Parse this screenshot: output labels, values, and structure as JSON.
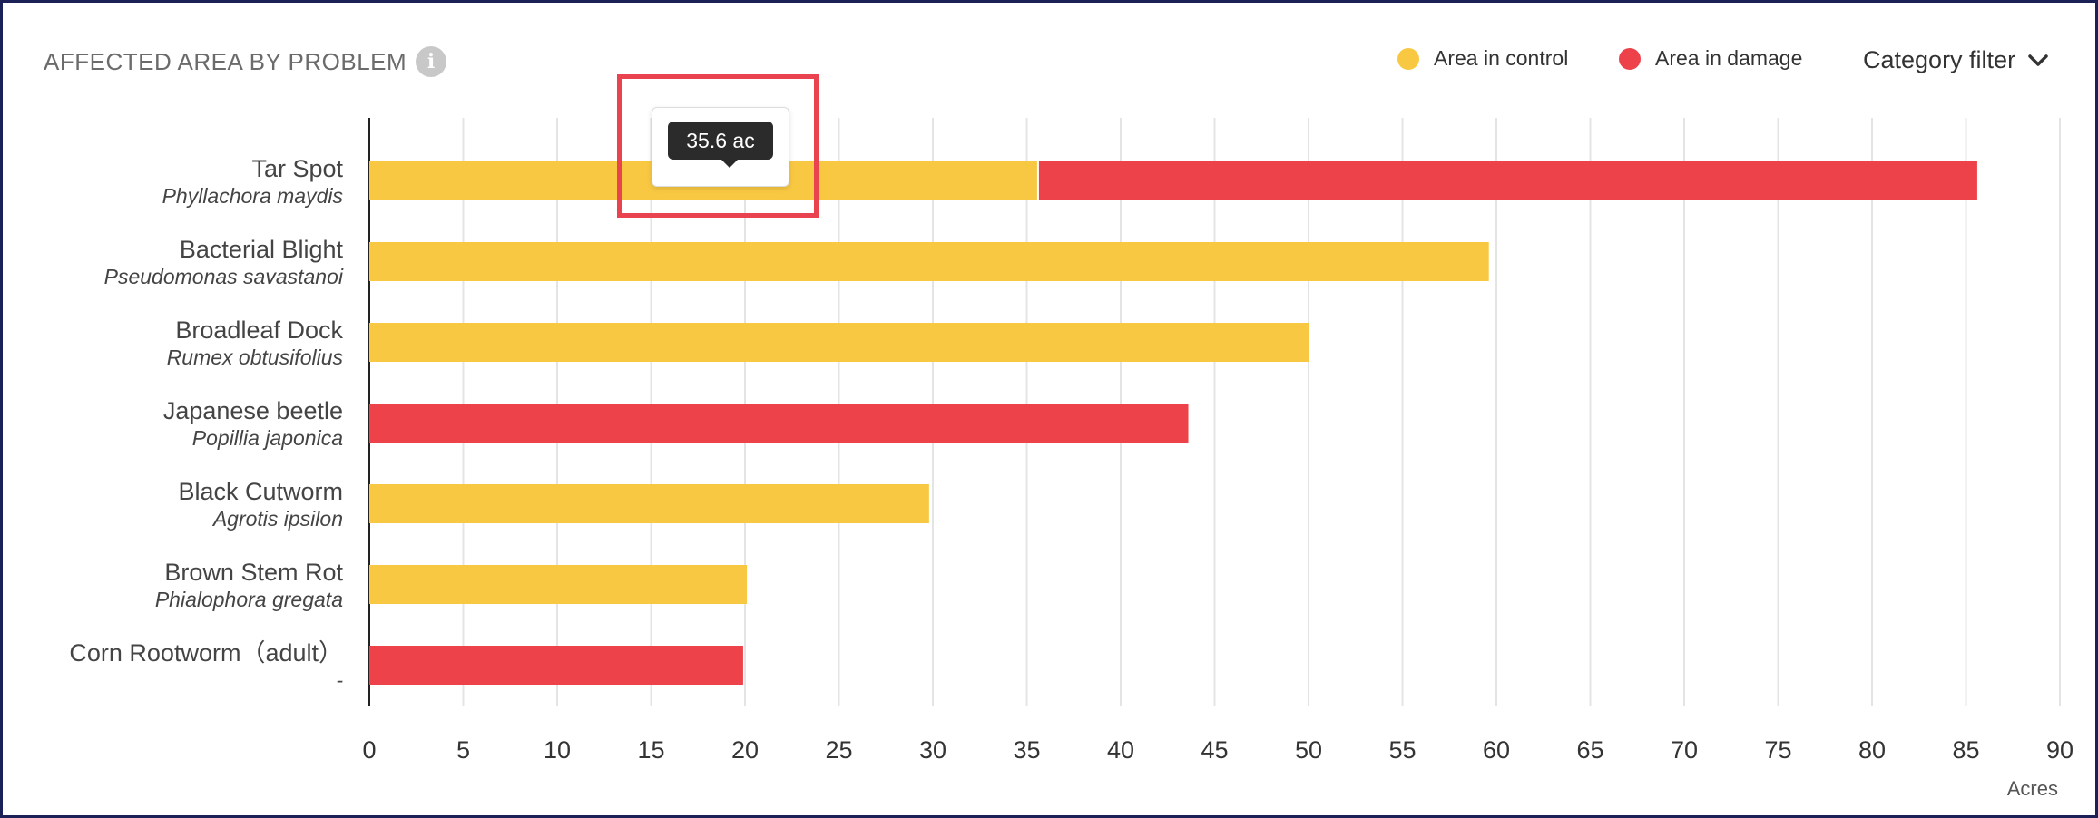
{
  "header": {
    "title": "AFFECTED AREA BY PROBLEM",
    "info_icon": "info-icon",
    "filter_label": "Category filter",
    "filter_icon": "chevron-down-icon"
  },
  "legend": [
    {
      "label": "Area in control",
      "color": "#f8c842"
    },
    {
      "label": "Area in damage",
      "color": "#ee424a"
    }
  ],
  "tooltip": {
    "text": "35.6 ac"
  },
  "chart_data": {
    "type": "bar",
    "orientation": "horizontal",
    "stacked": true,
    "categories": [
      {
        "name": "Tar Spot",
        "subtitle": "Phyllachora maydis"
      },
      {
        "name": "Bacterial Blight",
        "subtitle": "Pseudomonas savastanoi"
      },
      {
        "name": "Broadleaf Dock",
        "subtitle": "Rumex obtusifolius"
      },
      {
        "name": "Japanese beetle",
        "subtitle": "Popillia japonica"
      },
      {
        "name": "Black Cutworm",
        "subtitle": "Agrotis ipsilon"
      },
      {
        "name": "Brown Stem Rot",
        "subtitle": "Phialophora gregata"
      },
      {
        "name": "Corn Rootworm（adult）",
        "subtitle": "-"
      }
    ],
    "series": [
      {
        "name": "Area in control",
        "color": "#f8c842",
        "values": [
          35.6,
          59.6,
          50,
          0,
          29.8,
          20.1,
          0
        ]
      },
      {
        "name": "Area in damage",
        "color": "#ee424a",
        "values": [
          50,
          0,
          0,
          43.6,
          0,
          0,
          19.9
        ]
      }
    ],
    "xlim": [
      0,
      90
    ],
    "xticks": [
      0,
      5,
      10,
      15,
      20,
      25,
      30,
      35,
      40,
      45,
      50,
      55,
      60,
      65,
      70,
      75,
      80,
      85,
      90
    ],
    "xlabel": "Acres",
    "grid": true
  }
}
